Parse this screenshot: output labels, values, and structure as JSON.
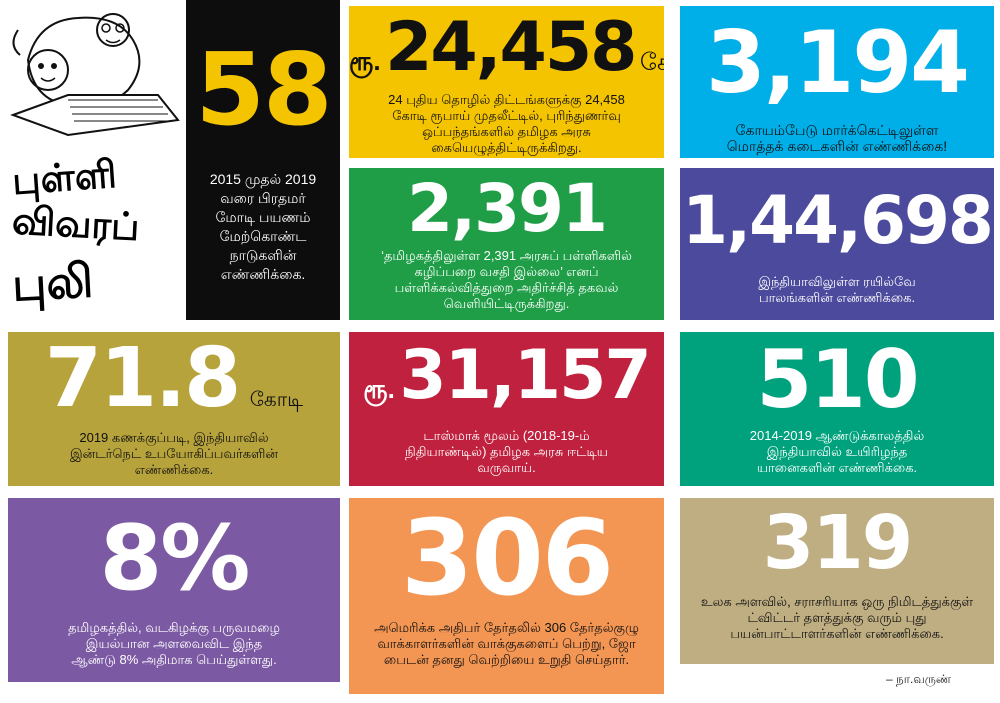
{
  "logo": {
    "line1": "புள்ளி",
    "line2": "விவரப்",
    "line3": "புலி"
  },
  "tiles": {
    "t58": {
      "number": "58",
      "desc": "2015 முதல் 2019 வரை பிரதமர் மோடி பயணம் மேற்கொண்ட நாடுகளின் எண்ணிக்கை."
    },
    "t24458": {
      "prefix": "ரூ.",
      "number": "24,458",
      "suffix": "கோடி",
      "desc": "24 புதிய தொழில் திட்டங்களுக்கு 24,458 கோடி ரூபாய் முதலீட்டில், புரிந்துணர்வு ஒப்பந்தங்களில் தமிழக அரசு கையெழுத்திட்டிருக்கிறது."
    },
    "t3194": {
      "number": "3,194",
      "desc": "கோயம்பேடு மார்க்கெட்டிலுள்ள மொத்தக் கடைகளின் எண்ணிக்கை!"
    },
    "t2391": {
      "number": "2,391",
      "desc": "‘தமிழகத்திலுள்ள 2,391 அரசுப் பள்ளிகளில் கழிப்பறை வசதி இல்லை’ எனப் பள்ளிக்கல்வித்துறை அதிர்ச்சித் தகவல் வெளியிட்டிருக்கிறது."
    },
    "t144698": {
      "number": "1,44,698",
      "desc": "இந்தியாவிலுள்ள ரயில்வே பாலங்களின் எண்ணிக்கை."
    },
    "t718": {
      "number": "71.8",
      "suffix": "கோடி",
      "desc": "2019 கணக்குப்படி, இந்தியாவில் இன்டர்நெட் உபயோகிப்பவர்களின் எண்ணிக்கை."
    },
    "t31157": {
      "prefix": "ரூ.",
      "number": "31,157",
      "desc": "டாஸ்மாக் மூலம் (2018-19-ம் நிதியாண்டில்) தமிழக அரசு ஈட்டிய வருவாய்."
    },
    "t510": {
      "number": "510",
      "desc": "2014-2019 ஆண்டுக்காலத்தில் இந்தியாவில் உயிரிழந்த யானைகளின் எண்ணிக்கை."
    },
    "t8": {
      "number": "8%",
      "desc": "தமிழகத்தில், வடகிழக்கு பருவமழை இயல்பான அளவைவிட இந்த ஆண்டு 8% அதிமாக பெய்துள்ளது."
    },
    "t306": {
      "number": "306",
      "desc": "அமெரிக்க அதிபர் தேர்தலில் 306 தேர்தல்குழு வாக்காளர்களின் வாக்குகளைப் பெற்று, ஜோ பைடன் தனது வெற்றியை உறுதி செய்தார்."
    },
    "t319": {
      "number": "319",
      "desc": "உலக அளவில், சராசரியாக ஒரு நிமிடத்துக்குள் ட்விட்டர் தளத்துக்கு வரும் புது பயன்பாட்டாளர்களின் எண்ணிக்கை."
    }
  },
  "credit": "– நா.வருண்"
}
